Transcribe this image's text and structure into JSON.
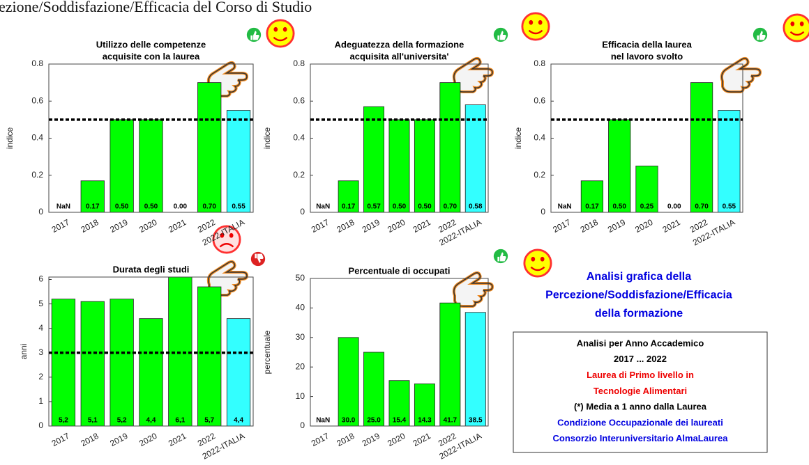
{
  "header": {
    "title": "ezione/Soddisfazione/Efficacia del Corso di Studio"
  },
  "chart_data": [
    {
      "type": "bar",
      "title": [
        "Utilizzo delle competenze",
        "acquisite con la laurea"
      ],
      "y_label": "indice",
      "categories": [
        "2017",
        "2018",
        "2019",
        "2020",
        "2021",
        "2022",
        "2022-ITALIA"
      ],
      "values": [
        null,
        0.17,
        0.5,
        0.5,
        0,
        0.7,
        0.55
      ],
      "value_labels": [
        "NaN",
        "0.17",
        "0.50",
        "0.50",
        "0.00",
        "0.70",
        "0.55"
      ],
      "colors": [
        "#00ff00",
        "#00ff00",
        "#00ff00",
        "#00ff00",
        "#00ff00",
        "#00ff00",
        "#33ffff"
      ],
      "reference_line": 0.5,
      "ylim": [
        0,
        0.8
      ],
      "yticks": [
        0,
        0.2,
        0.4,
        0.6,
        0.8
      ],
      "grid": false
    },
    {
      "type": "bar",
      "title": [
        "Adeguatezza della formazione",
        "acquisita all'universita'"
      ],
      "y_label": "indice",
      "categories": [
        "2017",
        "2018",
        "2019",
        "2020",
        "2021",
        "2022",
        "2022-ITALIA"
      ],
      "values": [
        null,
        0.17,
        0.57,
        0.5,
        0.5,
        0.7,
        0.58
      ],
      "value_labels": [
        "NaN",
        "0.17",
        "0.57",
        "0.50",
        "0.50",
        "0.70",
        "0.58"
      ],
      "colors": [
        "#00ff00",
        "#00ff00",
        "#00ff00",
        "#00ff00",
        "#00ff00",
        "#00ff00",
        "#33ffff"
      ],
      "reference_line": 0.5,
      "ylim": [
        0,
        0.8
      ],
      "yticks": [
        0,
        0.2,
        0.4,
        0.6,
        0.8
      ],
      "grid": false
    },
    {
      "type": "bar",
      "title": [
        "Efficacia della laurea",
        "nel lavoro svolto"
      ],
      "y_label": "indice",
      "categories": [
        "2017",
        "2018",
        "2019",
        "2020",
        "2021",
        "2022",
        "2022-ITALIA"
      ],
      "values": [
        null,
        0.17,
        0.5,
        0.25,
        0,
        0.7,
        0.55
      ],
      "value_labels": [
        "NaN",
        "0.17",
        "0.50",
        "0.25",
        "0.00",
        "0.70",
        "0.55"
      ],
      "colors": [
        "#00ff00",
        "#00ff00",
        "#00ff00",
        "#00ff00",
        "#00ff00",
        "#00ff00",
        "#33ffff"
      ],
      "reference_line": 0.5,
      "ylim": [
        0,
        0.8
      ],
      "yticks": [
        0,
        0.2,
        0.4,
        0.6,
        0.8
      ],
      "grid": false
    },
    {
      "type": "bar",
      "title": [
        "Durata degli studi"
      ],
      "y_label": "anni",
      "categories": [
        "2017",
        "2018",
        "2019",
        "2020",
        "2021",
        "2022",
        "2022-ITALIA"
      ],
      "values": [
        5.2,
        5.1,
        5.2,
        4.4,
        6.1,
        5.7,
        4.4
      ],
      "value_labels": [
        "5,2",
        "5,1",
        "5,2",
        "4,4",
        "6,1",
        "5,7",
        "4,4"
      ],
      "colors": [
        "#00ff00",
        "#00ff00",
        "#00ff00",
        "#00ff00",
        "#00ff00",
        "#00ff00",
        "#33ffff"
      ],
      "reference_line": 3,
      "ylim": [
        0,
        6.1
      ],
      "yticks": [
        0,
        1,
        2,
        3,
        4,
        5,
        6
      ],
      "grid": false
    },
    {
      "type": "bar",
      "title": [
        "Percentuale di occupati"
      ],
      "y_label": "percentuale",
      "categories": [
        "2017",
        "2018",
        "2019",
        "2020",
        "2021",
        "2022",
        "2022-ITALIA"
      ],
      "values": [
        null,
        30,
        25,
        15.4,
        14.3,
        41.7,
        38.5
      ],
      "value_labels": [
        "NaN",
        "30.0",
        "25.0",
        "15.4",
        "14.3",
        "41.7",
        "38.5"
      ],
      "colors": [
        "#00ff00",
        "#00ff00",
        "#00ff00",
        "#00ff00",
        "#00ff00",
        "#00ff00",
        "#33ffff"
      ],
      "ylim": [
        0,
        50
      ],
      "yticks": [
        0,
        10,
        20,
        30,
        40,
        50
      ],
      "grid": false
    }
  ],
  "side_title": [
    "Analisi grafica della",
    "Percezione/Soddisfazione/Efficacia",
    "della formazione"
  ],
  "info_box": {
    "lines": [
      "Analisi per Anno Accademico",
      "2017 ... 2022",
      "Laurea di Primo livello in",
      "Tecnologie Alimentari",
      "(*) Media a 1 anno dalla Laurea",
      "Condizione Occupazionale dei laureati",
      "Consorzio Interuniversitario AlmaLaurea"
    ],
    "colors": [
      "#000000",
      "#000000",
      "#ee0000",
      "#ee0000",
      "#000000",
      "#0000e0",
      "#0000e0"
    ]
  }
}
